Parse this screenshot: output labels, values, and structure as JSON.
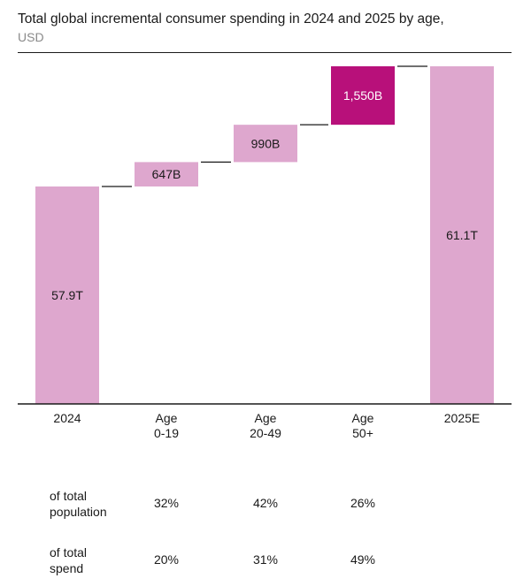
{
  "title": "Total global incremental consumer spending in 2024 and 2025 by age,",
  "subtitle": "USD",
  "chart_data": {
    "type": "bar",
    "subtype": "waterfall",
    "categories": [
      {
        "id": "c2024",
        "lines": [
          "2024"
        ]
      },
      {
        "id": "c019",
        "lines": [
          "Age",
          "0-19"
        ]
      },
      {
        "id": "c2049",
        "lines": [
          "Age",
          "20-49"
        ]
      },
      {
        "id": "c50",
        "lines": [
          "Age",
          "50+"
        ]
      },
      {
        "id": "c2025",
        "lines": [
          "2025E"
        ]
      }
    ],
    "bars": [
      {
        "kind": "total",
        "start": 0,
        "end": 57.9,
        "label": "57.9T",
        "color": "#dea7ce"
      },
      {
        "kind": "delta",
        "start": 57.9,
        "end": 58.547,
        "label": "647B",
        "color": "#dea7ce"
      },
      {
        "kind": "delta",
        "start": 58.547,
        "end": 59.537,
        "label": "990B",
        "color": "#dea7ce"
      },
      {
        "kind": "delta",
        "start": 59.537,
        "end": 61.087,
        "label": "1,550B",
        "color": "#b8107a",
        "label_color": "#ffffff"
      },
      {
        "kind": "total",
        "start": 0,
        "end": 61.1,
        "label": "61.1T",
        "color": "#dea7ce"
      }
    ],
    "unit": "USD"
  },
  "stats": {
    "rows": [
      {
        "label_lines": [
          "of total",
          "population"
        ],
        "values": [
          "32%",
          "42%",
          "26%"
        ]
      },
      {
        "label_lines": [
          "of total",
          "spend"
        ],
        "values": [
          "20%",
          "31%",
          "49%"
        ]
      }
    ]
  }
}
